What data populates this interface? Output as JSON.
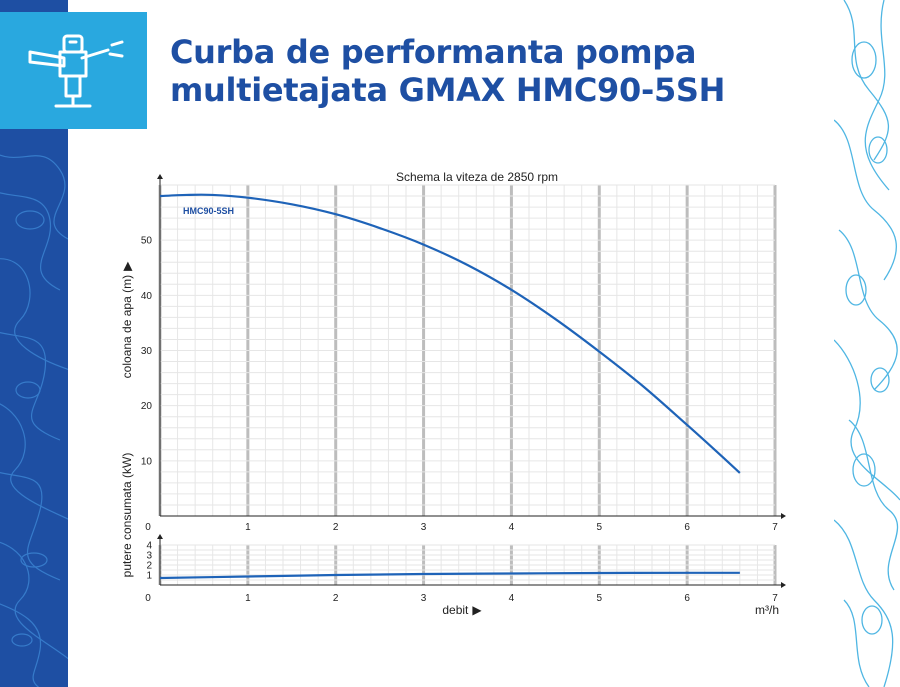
{
  "title_lines": [
    "Curba de performanta pompa",
    "multietajata GMAX HMC90-5SH"
  ],
  "colors": {
    "title": "#1e4fa3",
    "band": "#1e4fa3",
    "logo_bg": "#29a8df",
    "curve": "#1e63b8",
    "contour_right": "#4fb6e3"
  },
  "icon": "sprinkler-pump-icon",
  "chart_data": [
    {
      "type": "line",
      "title": "Schema la viteza de 2850 rpm",
      "xlabel": "debit",
      "ylabel": "coloana de apa (m)",
      "unit_label": "m³/h",
      "xlim": [
        0,
        7
      ],
      "ylim": [
        0,
        60
      ],
      "x_ticks": [
        "0",
        "1",
        "2",
        "3",
        "4",
        "5",
        "6",
        "7"
      ],
      "y_ticks": [
        "10",
        "20",
        "30",
        "40",
        "50"
      ],
      "grid": true,
      "series": [
        {
          "name": "HMC90-5SH",
          "x": [
            0,
            0.3,
            0.6,
            1.0,
            1.5,
            2.0,
            2.5,
            3.0,
            3.5,
            4.0,
            4.5,
            5.0,
            5.5,
            6.0,
            6.3,
            6.6
          ],
          "y": [
            58,
            58.2,
            58.2,
            57.7,
            56.5,
            54.7,
            52.2,
            49.2,
            45.5,
            41.0,
            35.7,
            29.8,
            23.5,
            16.5,
            12.2,
            7.8
          ]
        }
      ]
    },
    {
      "type": "line",
      "xlabel": "debit",
      "ylabel": "putere consumata (kW)",
      "xlim": [
        0,
        7
      ],
      "ylim": [
        0,
        4
      ],
      "x_ticks": [
        "0",
        "1",
        "2",
        "3",
        "4",
        "5",
        "6",
        "7"
      ],
      "y_ticks": [
        "1",
        "2",
        "3",
        "4"
      ],
      "grid": true,
      "series": [
        {
          "x": [
            0,
            1,
            2,
            3,
            4,
            5,
            6,
            6.6
          ],
          "y": [
            0.7,
            0.85,
            1.0,
            1.1,
            1.15,
            1.2,
            1.22,
            1.22
          ]
        }
      ]
    }
  ]
}
